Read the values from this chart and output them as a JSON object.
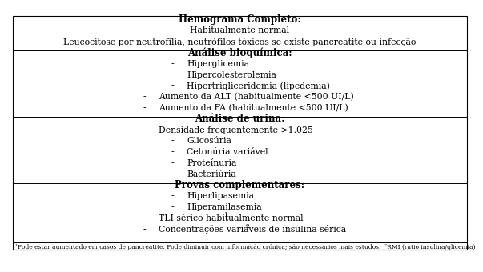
{
  "sections": [
    {
      "header": "Hemograma Completo:",
      "items": [
        {
          "indent": 0,
          "bullet": false,
          "text": "Habitualmente normal"
        },
        {
          "indent": 0,
          "bullet": false,
          "text": "Leucocitose por neutrofilia, neutrófilos tóxicos se existe pancreatite ou infecção"
        }
      ]
    },
    {
      "header": "Análise bioquímica:",
      "items": [
        {
          "indent": 1,
          "bullet": true,
          "text": "Hiperglicemia"
        },
        {
          "indent": 1,
          "bullet": true,
          "text": "Hipercolesterolemia"
        },
        {
          "indent": 1,
          "bullet": true,
          "text": "Hipertrigliceridemia (lipedemia)"
        },
        {
          "indent": 2,
          "bullet": true,
          "text": "Aumento da ALT (habitualmente <500 UI/L)"
        },
        {
          "indent": 2,
          "bullet": true,
          "text": "Aumento da FA (habitualmente <500 UI/L)"
        }
      ]
    },
    {
      "header": "Análise de urina:",
      "items": [
        {
          "indent": 2,
          "bullet": true,
          "text": "Densidade frequentemente >1.025"
        },
        {
          "indent": 1,
          "bullet": true,
          "text": "Glicosúria"
        },
        {
          "indent": 1,
          "bullet": true,
          "text": "Cetonúria variável"
        },
        {
          "indent": 1,
          "bullet": true,
          "text": "Proteínuria"
        },
        {
          "indent": 1,
          "bullet": true,
          "text": "Bacteriúria"
        }
      ]
    },
    {
      "header": "Provas complementares:",
      "items": [
        {
          "indent": 1,
          "bullet": true,
          "text": "Hiperlipasemia"
        },
        {
          "indent": 1,
          "bullet": true,
          "text": "Hiperamilasemia"
        },
        {
          "indent": 2,
          "bullet": true,
          "text": "TLI sérico habitualmente normal",
          "superscript": "1"
        },
        {
          "indent": 2,
          "bullet": true,
          "text": "Concentrações variáveis de insulina sérica",
          "superscript": "2"
        }
      ]
    }
  ],
  "footnote": "¹Pode estar aumentado em casos de pancreatite. Pode diminuir com informação crónica; são necessários mais estudos.  ²RMI (ratio insulina/glicemia)",
  "bg_color": "#ffffff",
  "border_color": "#000000",
  "text_color": "#000000",
  "header_fontsize": 8.5,
  "body_fontsize": 7.8,
  "footnote_fontsize": 5.5
}
